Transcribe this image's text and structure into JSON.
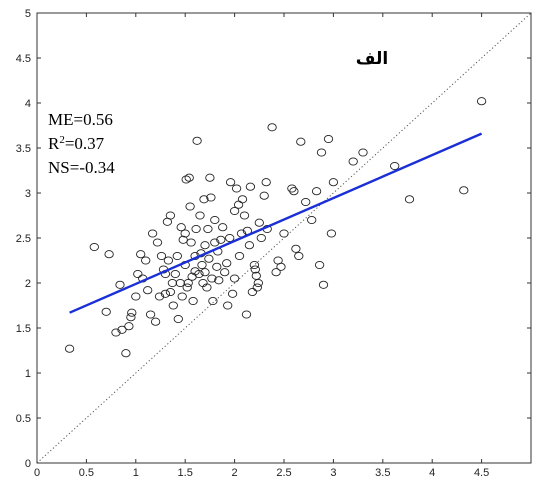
{
  "chart_data": {
    "type": "scatter",
    "xlim": [
      0,
      5
    ],
    "ylim": [
      0,
      5
    ],
    "x_ticks": [
      0,
      0.5,
      1,
      1.5,
      2,
      2.5,
      3,
      3.5,
      4,
      4.5
    ],
    "x_tick_labels": [
      "0",
      "0.5",
      "1",
      "1.5",
      "2",
      "2.5",
      "3",
      "3.5",
      "4",
      "4.5"
    ],
    "y_ticks": [
      0,
      0.5,
      1,
      1.5,
      2,
      2.5,
      3,
      3.5,
      4,
      4.5,
      5
    ],
    "y_tick_labels": [
      "0",
      "0.5",
      "1",
      "1.5",
      "2",
      "2.5",
      "3",
      "3.5",
      "4",
      "4.5",
      "5"
    ],
    "grid": false,
    "panel_label": "الف",
    "stats": {
      "me": "ME=0.56",
      "r2_prefix": "R",
      "r2_sup": "2",
      "r2_value": "=0.37",
      "ns": "NS=-0.34"
    },
    "regression_line": {
      "x": [
        0.33,
        4.5
      ],
      "y": [
        1.67,
        3.66
      ],
      "color": "#1a2fd6"
    },
    "identity_line": {
      "x": [
        0,
        5
      ],
      "y": [
        0,
        5
      ],
      "style": "dotted"
    },
    "points": [
      [
        0.33,
        1.27
      ],
      [
        0.58,
        2.4
      ],
      [
        0.7,
        1.68
      ],
      [
        0.73,
        2.32
      ],
      [
        0.8,
        1.45
      ],
      [
        0.84,
        1.98
      ],
      [
        0.86,
        1.48
      ],
      [
        0.9,
        1.22
      ],
      [
        0.93,
        1.52
      ],
      [
        0.95,
        1.62
      ],
      [
        0.96,
        1.67
      ],
      [
        1.0,
        1.85
      ],
      [
        1.02,
        2.1
      ],
      [
        1.05,
        2.32
      ],
      [
        1.07,
        2.05
      ],
      [
        1.1,
        2.25
      ],
      [
        1.12,
        1.92
      ],
      [
        1.15,
        1.65
      ],
      [
        1.17,
        2.55
      ],
      [
        1.2,
        1.57
      ],
      [
        1.22,
        2.45
      ],
      [
        1.24,
        1.85
      ],
      [
        1.26,
        2.3
      ],
      [
        1.28,
        2.15
      ],
      [
        1.3,
        2.1
      ],
      [
        1.3,
        1.88
      ],
      [
        1.32,
        2.68
      ],
      [
        1.33,
        2.25
      ],
      [
        1.35,
        1.9
      ],
      [
        1.35,
        2.75
      ],
      [
        1.37,
        2.0
      ],
      [
        1.38,
        1.75
      ],
      [
        1.4,
        2.1
      ],
      [
        1.42,
        2.3
      ],
      [
        1.43,
        1.6
      ],
      [
        1.45,
        2.0
      ],
      [
        1.46,
        2.62
      ],
      [
        1.47,
        1.85
      ],
      [
        1.48,
        2.48
      ],
      [
        1.5,
        2.55
      ],
      [
        1.5,
        2.2
      ],
      [
        1.51,
        3.15
      ],
      [
        1.52,
        1.95
      ],
      [
        1.53,
        2.0
      ],
      [
        1.54,
        3.17
      ],
      [
        1.55,
        2.85
      ],
      [
        1.56,
        2.45
      ],
      [
        1.57,
        2.07
      ],
      [
        1.58,
        1.8
      ],
      [
        1.6,
        2.3
      ],
      [
        1.6,
        2.13
      ],
      [
        1.61,
        2.6
      ],
      [
        1.62,
        3.58
      ],
      [
        1.64,
        2.1
      ],
      [
        1.65,
        2.75
      ],
      [
        1.66,
        2.33
      ],
      [
        1.67,
        2.2
      ],
      [
        1.68,
        2.0
      ],
      [
        1.69,
        2.93
      ],
      [
        1.7,
        2.12
      ],
      [
        1.7,
        2.42
      ],
      [
        1.72,
        1.95
      ],
      [
        1.73,
        2.6
      ],
      [
        1.74,
        2.27
      ],
      [
        1.75,
        3.17
      ],
      [
        1.76,
        2.95
      ],
      [
        1.77,
        2.05
      ],
      [
        1.78,
        1.8
      ],
      [
        1.8,
        2.45
      ],
      [
        1.8,
        2.7
      ],
      [
        1.82,
        2.18
      ],
      [
        1.83,
        2.35
      ],
      [
        1.84,
        2.03
      ],
      [
        1.86,
        2.48
      ],
      [
        1.88,
        2.62
      ],
      [
        1.9,
        2.12
      ],
      [
        1.92,
        2.22
      ],
      [
        1.93,
        1.75
      ],
      [
        1.95,
        2.5
      ],
      [
        1.96,
        3.12
      ],
      [
        1.98,
        1.88
      ],
      [
        2.0,
        2.05
      ],
      [
        2.0,
        2.8
      ],
      [
        2.02,
        3.05
      ],
      [
        2.04,
        2.87
      ],
      [
        2.05,
        2.3
      ],
      [
        2.07,
        2.55
      ],
      [
        2.08,
        2.93
      ],
      [
        2.1,
        2.75
      ],
      [
        2.12,
        1.65
      ],
      [
        2.13,
        2.58
      ],
      [
        2.15,
        2.42
      ],
      [
        2.16,
        3.07
      ],
      [
        2.18,
        1.9
      ],
      [
        2.2,
        2.2
      ],
      [
        2.21,
        2.15
      ],
      [
        2.22,
        2.08
      ],
      [
        2.23,
        1.95
      ],
      [
        2.24,
        2.0
      ],
      [
        2.25,
        2.67
      ],
      [
        2.27,
        2.5
      ],
      [
        2.3,
        2.97
      ],
      [
        2.32,
        3.12
      ],
      [
        2.33,
        2.6
      ],
      [
        2.38,
        3.73
      ],
      [
        2.42,
        2.12
      ],
      [
        2.44,
        2.25
      ],
      [
        2.47,
        2.18
      ],
      [
        2.5,
        2.55
      ],
      [
        2.58,
        3.05
      ],
      [
        2.6,
        3.02
      ],
      [
        2.62,
        2.38
      ],
      [
        2.65,
        2.3
      ],
      [
        2.67,
        3.57
      ],
      [
        2.72,
        2.9
      ],
      [
        2.78,
        2.7
      ],
      [
        2.83,
        3.02
      ],
      [
        2.86,
        2.2
      ],
      [
        2.88,
        3.45
      ],
      [
        2.9,
        1.98
      ],
      [
        2.95,
        3.6
      ],
      [
        2.98,
        2.55
      ],
      [
        3.0,
        3.12
      ],
      [
        3.2,
        3.35
      ],
      [
        3.3,
        3.45
      ],
      [
        3.62,
        3.3
      ],
      [
        3.77,
        2.93
      ],
      [
        4.32,
        3.03
      ],
      [
        4.5,
        4.02
      ]
    ]
  }
}
